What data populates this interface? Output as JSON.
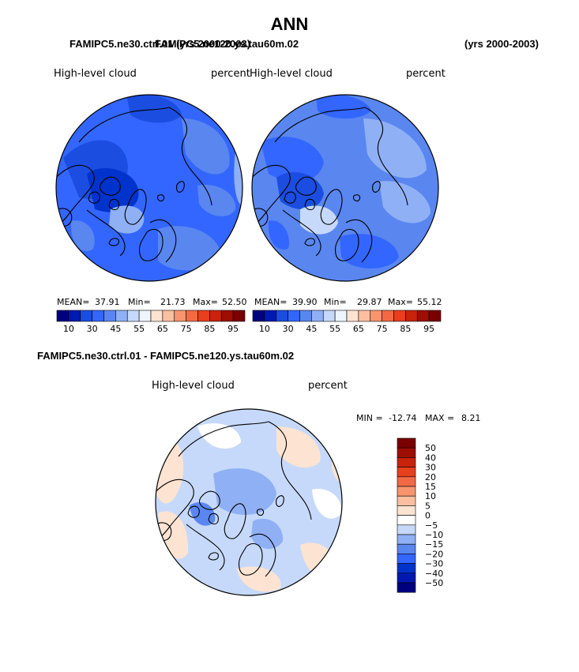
{
  "page": {
    "title": "ANN",
    "case_label_left": "FAMIPC5.ne30.ctrl.01 (yrs 2000-2003)",
    "case_label_right_overlap": "FAMIPC5.ne120.ys.tau60m.02",
    "years_right": "(yrs 2000-2003)",
    "diff_title": "FAMIPC5.ne30.ctrl.01 - FAMIPC5.ne120.ys.tau60m.02"
  },
  "colors": {
    "coast": "#000000",
    "blue_scale": [
      "#00007f",
      "#0019b2",
      "#0033cc",
      "#1b4ee0",
      "#3366ff",
      "#5a86f0",
      "#8fb0f5",
      "#c6d9fa"
    ],
    "red_scale": [
      "#fde3d2",
      "#fbbfa0",
      "#f7956e",
      "#f26a45",
      "#e83f1d",
      "#c9230c",
      "#9e0e03",
      "#7a0000"
    ]
  },
  "chart_data": [
    {
      "type": "heatmap",
      "name": "left-map",
      "projection": "north-polar-stereographic",
      "variable_label": "High-level cloud",
      "units_label": "percent",
      "stats": {
        "mean_label": "MEAN=",
        "mean": "37.91",
        "min_label": "Min=",
        "min": "21.73",
        "max_label": "Max=",
        "max": "52.50"
      },
      "colorbar_ticks": [
        "10",
        "30",
        "45",
        "55",
        "65",
        "75",
        "85",
        "95"
      ],
      "colorbar_colors": [
        "#00007f",
        "#0019b2",
        "#1b4ee0",
        "#3366ff",
        "#5a86f0",
        "#8fb0f5",
        "#c6d9fa",
        "#eef5ff",
        "#fde3d2",
        "#fbbfa0",
        "#f7956e",
        "#f26a45",
        "#e83f1d",
        "#c9230c",
        "#9e0e03",
        "#7a0000"
      ],
      "dominant_value_range": [
        30,
        45
      ]
    },
    {
      "type": "heatmap",
      "name": "right-map",
      "projection": "north-polar-stereographic",
      "variable_label": "High-level cloud",
      "units_label": "percent",
      "stats": {
        "mean_label": "MEAN=",
        "mean": "39.90",
        "min_label": "Min=",
        "min": "29.87",
        "max_label": "Max=",
        "max": "55.12"
      },
      "colorbar_ticks": [
        "10",
        "30",
        "45",
        "55",
        "65",
        "75",
        "85",
        "95"
      ],
      "colorbar_colors": [
        "#00007f",
        "#0019b2",
        "#1b4ee0",
        "#3366ff",
        "#5a86f0",
        "#8fb0f5",
        "#c6d9fa",
        "#eef5ff",
        "#fde3d2",
        "#fbbfa0",
        "#f7956e",
        "#f26a45",
        "#e83f1d",
        "#c9230c",
        "#9e0e03",
        "#7a0000"
      ],
      "dominant_value_range": [
        30,
        50
      ]
    },
    {
      "type": "heatmap",
      "name": "difference-map",
      "projection": "north-polar-stereographic",
      "variable_label": "High-level cloud",
      "units_label": "percent",
      "stats": {
        "min_label": "MIN =",
        "min": "-12.74",
        "max_label": "MAX =",
        "max": "8.21"
      },
      "colorbar_ticks": [
        "50",
        "40",
        "30",
        "20",
        "15",
        "10",
        "5",
        "0",
        "−5",
        "−10",
        "−15",
        "−20",
        "−30",
        "−40",
        "−50"
      ],
      "colorbar_colors": [
        "#7a0000",
        "#9e0e03",
        "#c9230c",
        "#e83f1d",
        "#f26a45",
        "#f7956e",
        "#fbbfa0",
        "#fde3d2",
        "#ffffff",
        "#c6d9fa",
        "#8fb0f5",
        "#5a86f0",
        "#3366ff",
        "#0033cc",
        "#0019b2",
        "#00007f"
      ],
      "dominant_value_range": [
        -10,
        5
      ]
    }
  ]
}
